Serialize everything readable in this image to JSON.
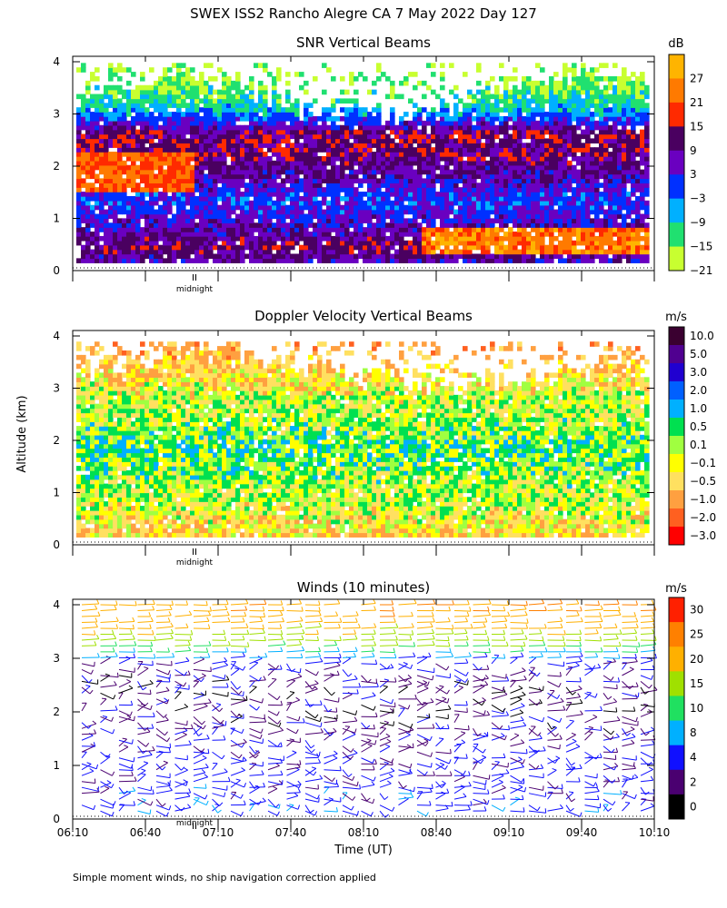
{
  "title": "SWEX ISS2 Rancho Alegre CA   7 May 2022 Day 127",
  "ylabel": "Altitude (km)",
  "footnote": "Simple moment winds, no ship navigation correction applied",
  "midnight_label": "midnight",
  "chart_data": [
    {
      "type": "heatmap",
      "title": "SNR Vertical Beams",
      "xlabel": "",
      "ylabel": "Altitude (km)",
      "xlim": [
        "06:10",
        "10:10"
      ],
      "ylim": [
        0,
        4
      ],
      "yticks": [
        "0",
        "1",
        "2",
        "3",
        "4"
      ],
      "colorbar": {
        "unit": "dB",
        "labels": [
          "27",
          "21",
          "15",
          "9",
          "3",
          "−3",
          "−9",
          "−15",
          "−21"
        ],
        "colors": [
          "#ffb400",
          "#ff7a00",
          "#ff2a00",
          "#4a0060",
          "#6a00c0",
          "#0030ff",
          "#00b0ff",
          "#20e070",
          "#c8ff30"
        ]
      },
      "profile": [
        {
          "alt": 0.1,
          "value": 3
        },
        {
          "alt": 0.4,
          "value": 9
        },
        {
          "alt": 0.8,
          "value": 3
        },
        {
          "alt": 1.3,
          "value": -3
        },
        {
          "alt": 1.7,
          "value": 3
        },
        {
          "alt": 2.2,
          "value": 9
        },
        {
          "alt": 2.6,
          "value": 9
        },
        {
          "alt": 3.0,
          "value": -9
        },
        {
          "alt": 3.3,
          "value": -15
        },
        {
          "alt": 3.8,
          "value": -21
        }
      ]
    },
    {
      "type": "heatmap",
      "title": "Doppler Velocity Vertical Beams",
      "xlabel": "",
      "ylabel": "Altitude (km)",
      "xlim": [
        "06:10",
        "10:10"
      ],
      "ylim": [
        0,
        4
      ],
      "yticks": [
        "0",
        "1",
        "2",
        "3",
        "4"
      ],
      "colorbar": {
        "unit": "m/s",
        "labels": [
          "10.0",
          "5.0",
          "3.0",
          "2.0",
          "1.0",
          "0.5",
          "0.1",
          "−0.1",
          "−0.5",
          "−1.0",
          "−2.0",
          "−3.0"
        ],
        "colors": [
          "#3a0030",
          "#500090",
          "#2000d0",
          "#0060ff",
          "#00b0ff",
          "#00e050",
          "#a0ff40",
          "#ffff00",
          "#ffe060",
          "#ffa040",
          "#ff6020",
          "#ff0000"
        ]
      },
      "profile": [
        {
          "alt": 0.2,
          "value": -0.5
        },
        {
          "alt": 0.7,
          "value": -0.1
        },
        {
          "alt": 1.2,
          "value": 0.1
        },
        {
          "alt": 1.8,
          "value": 0.5
        },
        {
          "alt": 2.3,
          "value": 0.1
        },
        {
          "alt": 2.8,
          "value": -0.1
        },
        {
          "alt": 3.2,
          "value": -0.5
        },
        {
          "alt": 3.7,
          "value": -1.0
        }
      ]
    },
    {
      "type": "scatter",
      "title": "Winds (10 minutes)",
      "xlabel": "Time (UT)",
      "ylabel": "Altitude (km)",
      "xlim": [
        "06:10",
        "10:10"
      ],
      "ylim": [
        0,
        4
      ],
      "xticks": [
        "06:10",
        "06:40",
        "07:10",
        "07:40",
        "08:10",
        "08:40",
        "09:10",
        "09:40",
        "10:10"
      ],
      "yticks": [
        "0",
        "1",
        "2",
        "3",
        "4"
      ],
      "colorbar": {
        "unit": "m/s",
        "labels": [
          "30",
          "25",
          "20",
          "15",
          "10",
          "8",
          "4",
          "2",
          "0"
        ],
        "colors": [
          "#ff2000",
          "#ff8000",
          "#ffb000",
          "#a0e000",
          "#20e060",
          "#00b0ff",
          "#1010ff",
          "#4a0070",
          "#000000"
        ]
      },
      "profile": [
        {
          "alt": 0.2,
          "speed": 5
        },
        {
          "alt": 0.6,
          "speed": 4
        },
        {
          "alt": 1.0,
          "speed": 4
        },
        {
          "alt": 1.5,
          "speed": 3
        },
        {
          "alt": 2.0,
          "speed": 2
        },
        {
          "alt": 2.5,
          "speed": 2
        },
        {
          "alt": 2.9,
          "speed": 4
        },
        {
          "alt": 3.2,
          "speed": 12
        },
        {
          "alt": 3.5,
          "speed": 18
        },
        {
          "alt": 3.9,
          "speed": 22
        }
      ]
    }
  ]
}
